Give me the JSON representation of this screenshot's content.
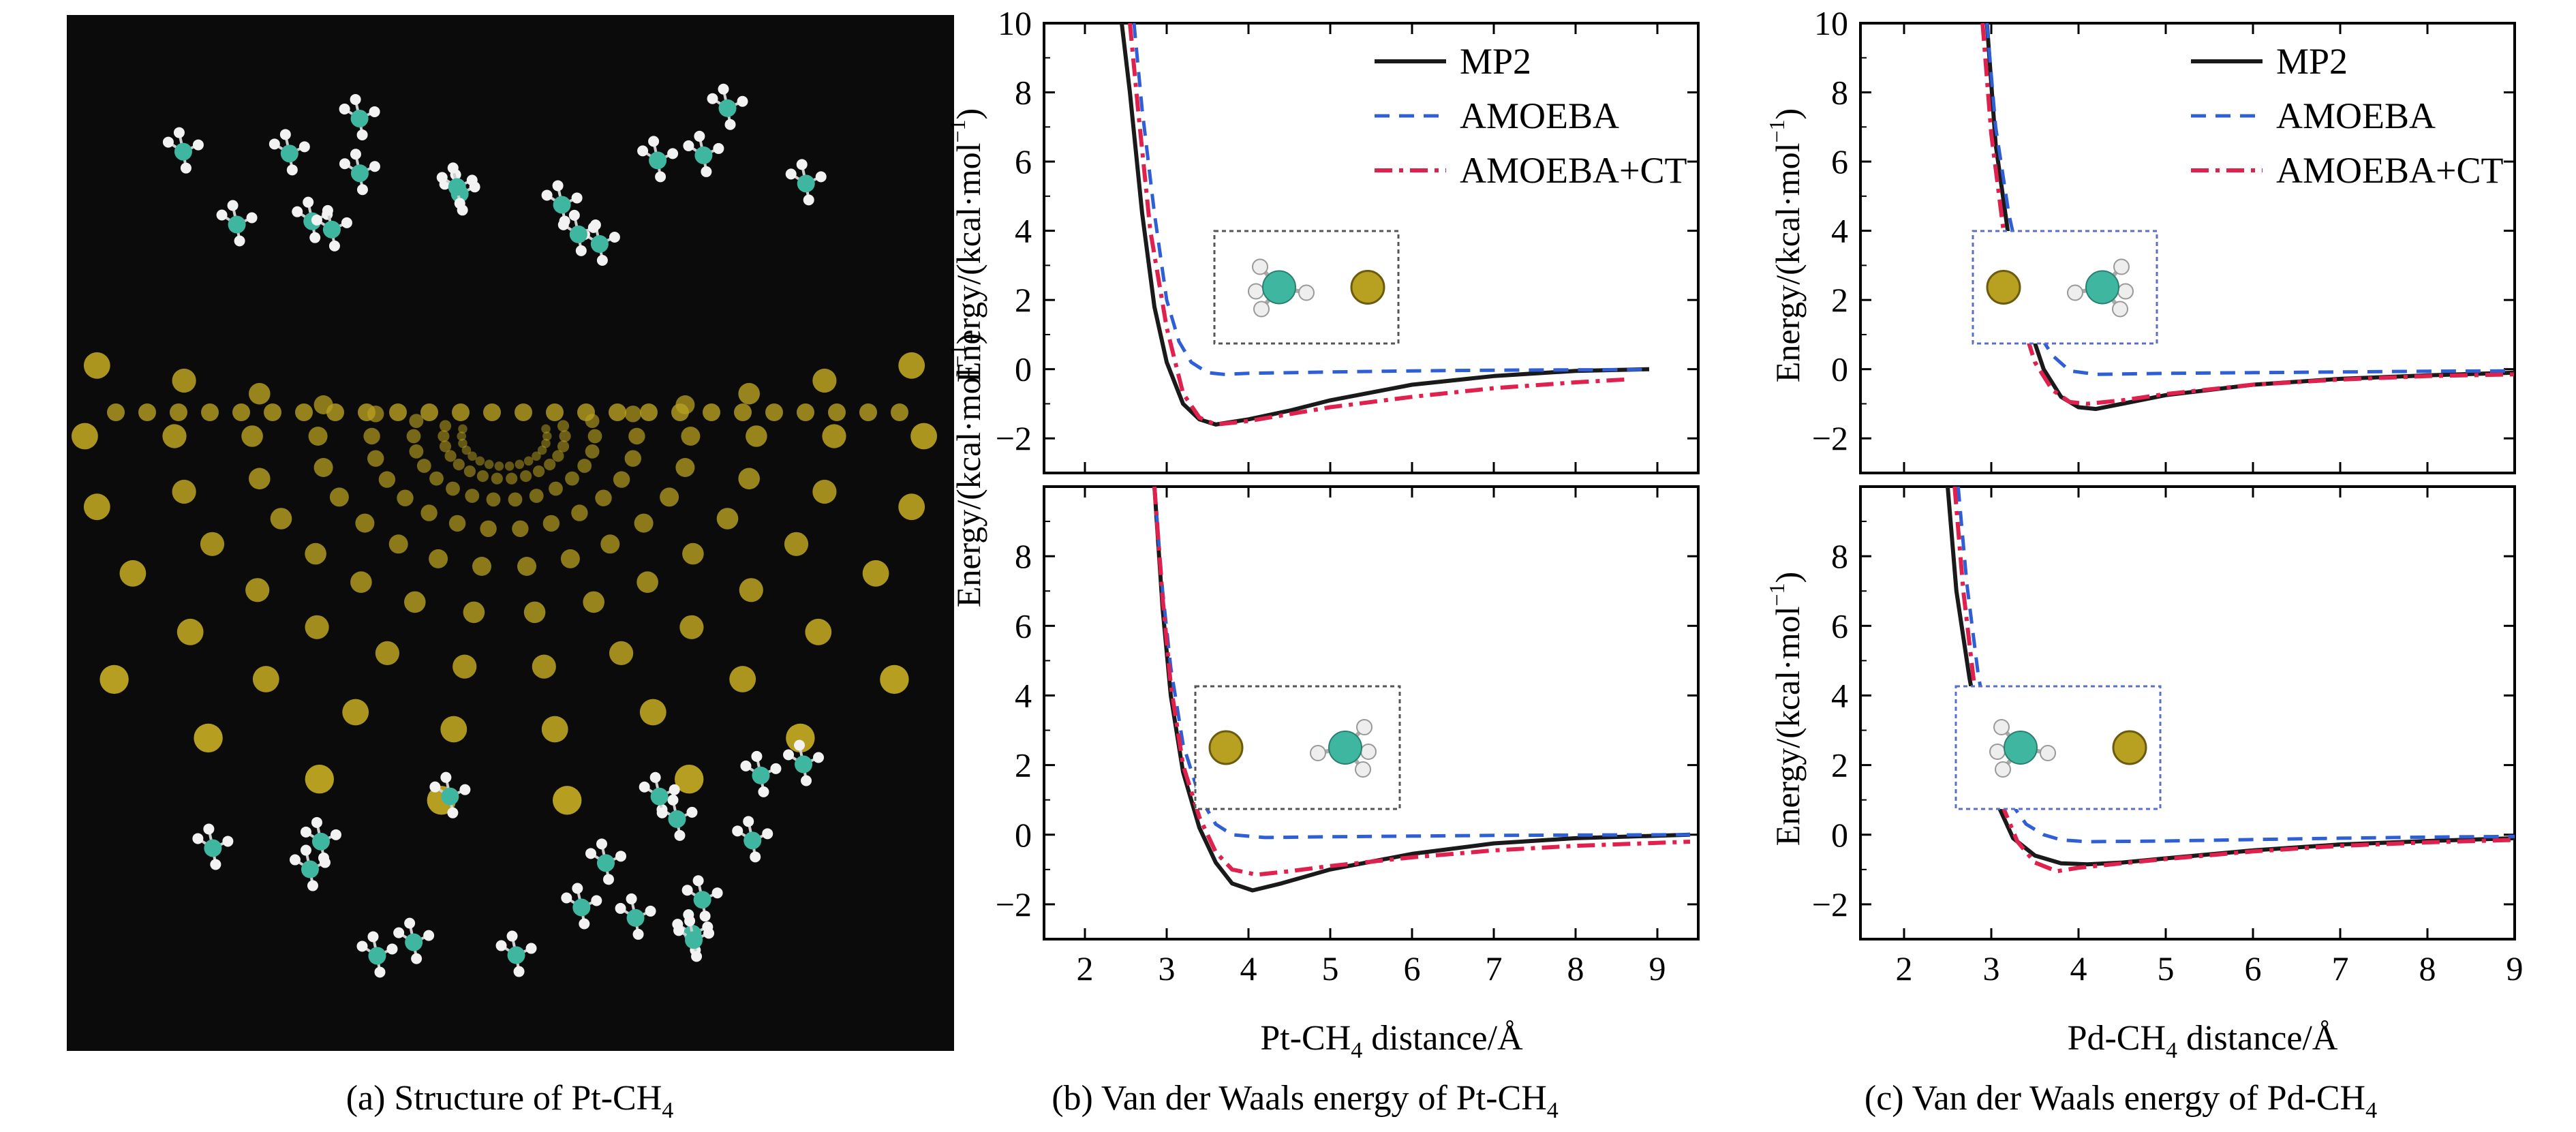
{
  "captions": {
    "a": {
      "text": "(a) Structure of Pt-CH",
      "sub": "4"
    },
    "b": {
      "text": "(b) Van der Waals energy of Pt-CH",
      "sub": "4"
    },
    "c": {
      "text": "(c) Van der Waals energy of Pd-CH",
      "sub": "4"
    }
  },
  "colors": {
    "mp2": "#1a1a1a",
    "amoeba": "#2f5fd6",
    "amoeba_ct": "#e0204d",
    "pt_metal": "#b8a020",
    "carbon": "#3fb7a0",
    "hydrogen": "#f2f2f2",
    "image_bg": "#0b0b0b"
  },
  "legend": {
    "mp2": "MP2",
    "amoeba": "AMOEBA",
    "amoeba_ct": "AMOEBA+CT"
  },
  "axes": {
    "ylabel_main": "Energy/(kcal·mol",
    "ylabel_exp": "−1",
    "ylabel_close": ")",
    "xlabel_pt": {
      "text": "Pt-CH",
      "sub": "4",
      "tail": " distance/Å"
    },
    "xlabel_pd": {
      "text": "Pd-CH",
      "sub": "4",
      "tail": " distance/Å"
    }
  },
  "chart_data": [
    {
      "type": "line",
      "panel": "b-top",
      "xlim": [
        1.5,
        9.5
      ],
      "ylim": [
        -3,
        10
      ],
      "yticks": [
        "10",
        "8",
        "6",
        "4",
        "2",
        "0",
        "−2"
      ],
      "xticks": [],
      "legend_visible": true,
      "legend_position": "top-right",
      "series": [
        {
          "name": "MP2",
          "x": [
            2.45,
            2.55,
            2.7,
            2.85,
            3.0,
            3.2,
            3.4,
            3.6,
            4.0,
            4.5,
            5.0,
            6.0,
            7.0,
            8.0,
            8.9
          ],
          "y": [
            10,
            8,
            4.5,
            1.8,
            0.2,
            -1.0,
            -1.45,
            -1.6,
            -1.45,
            -1.2,
            -0.9,
            -0.45,
            -0.2,
            -0.05,
            0.0
          ]
        },
        {
          "name": "AMOEBA",
          "x": [
            2.6,
            2.7,
            2.85,
            3.0,
            3.15,
            3.3,
            3.5,
            3.7,
            4.0,
            5.0,
            6.0,
            7.0,
            8.0,
            8.9
          ],
          "y": [
            10,
            7.5,
            4.5,
            2.0,
            0.8,
            0.2,
            -0.1,
            -0.15,
            -0.12,
            -0.08,
            -0.05,
            -0.03,
            -0.02,
            -0.01
          ]
        },
        {
          "name": "AMOEBA+CT",
          "x": [
            2.55,
            2.65,
            2.8,
            3.0,
            3.2,
            3.4,
            3.6,
            4.0,
            4.5,
            5.0,
            6.0,
            7.0,
            8.0,
            8.6
          ],
          "y": [
            10,
            7.5,
            4.0,
            1.2,
            -0.7,
            -1.4,
            -1.6,
            -1.5,
            -1.3,
            -1.1,
            -0.8,
            -0.55,
            -0.38,
            -0.3
          ]
        }
      ]
    },
    {
      "type": "line",
      "panel": "b-bottom",
      "xlim": [
        1.5,
        9.5
      ],
      "ylim": [
        -3,
        10
      ],
      "yticks": [
        "8",
        "6",
        "4",
        "2",
        "0",
        "−2"
      ],
      "xticks": [
        "2",
        "3",
        "4",
        "5",
        "6",
        "7",
        "8",
        "9"
      ],
      "legend_visible": false,
      "series": [
        {
          "name": "MP2",
          "x": [
            2.85,
            2.95,
            3.05,
            3.2,
            3.4,
            3.6,
            3.8,
            4.05,
            4.4,
            5.0,
            6.0,
            7.0,
            8.0,
            9.4
          ],
          "y": [
            10,
            6.5,
            4.0,
            1.8,
            0.2,
            -0.8,
            -1.4,
            -1.6,
            -1.4,
            -1.0,
            -0.55,
            -0.25,
            -0.1,
            0.0
          ]
        },
        {
          "name": "AMOEBA",
          "x": [
            2.85,
            2.95,
            3.05,
            3.2,
            3.4,
            3.6,
            3.8,
            4.2,
            5.0,
            6.0,
            7.0,
            8.0,
            9.4
          ],
          "y": [
            10,
            7.0,
            4.8,
            2.6,
            1.1,
            0.3,
            0.0,
            -0.08,
            -0.06,
            -0.04,
            -0.02,
            -0.01,
            0.0
          ]
        },
        {
          "name": "AMOEBA+CT",
          "x": [
            2.85,
            2.95,
            3.05,
            3.2,
            3.4,
            3.6,
            3.8,
            4.1,
            4.5,
            5.0,
            6.0,
            7.0,
            8.0,
            9.4
          ],
          "y": [
            10,
            6.8,
            4.3,
            2.0,
            0.5,
            -0.5,
            -1.0,
            -1.15,
            -1.05,
            -0.9,
            -0.65,
            -0.45,
            -0.32,
            -0.2
          ]
        }
      ]
    },
    {
      "type": "line",
      "panel": "c-top",
      "xlim": [
        1.5,
        9
      ],
      "ylim": [
        -3,
        10
      ],
      "yticks": [
        "10",
        "8",
        "6",
        "4",
        "2",
        "0",
        "−2"
      ],
      "xticks": [],
      "legend_visible": true,
      "legend_position": "top-right",
      "series": [
        {
          "name": "MP2",
          "x": [
            2.95,
            3.05,
            3.2,
            3.4,
            3.6,
            3.8,
            4.0,
            4.2,
            4.5,
            5.0,
            6.0,
            7.0,
            8.0,
            9.0
          ],
          "y": [
            10,
            6.5,
            3.8,
            1.5,
            0.0,
            -0.8,
            -1.1,
            -1.15,
            -1.0,
            -0.75,
            -0.45,
            -0.28,
            -0.18,
            -0.1
          ]
        },
        {
          "name": "AMOEBA",
          "x": [
            2.95,
            3.05,
            3.2,
            3.4,
            3.55,
            3.7,
            3.9,
            4.2,
            5.0,
            6.0,
            7.0,
            8.0,
            9.0
          ],
          "y": [
            10,
            7.0,
            4.5,
            2.2,
            1.0,
            0.4,
            -0.05,
            -0.15,
            -0.12,
            -0.1,
            -0.08,
            -0.06,
            -0.05
          ]
        },
        {
          "name": "AMOEBA+CT",
          "x": [
            2.9,
            3.0,
            3.15,
            3.3,
            3.5,
            3.7,
            3.9,
            4.1,
            4.5,
            5.0,
            6.0,
            7.0,
            8.0,
            9.0
          ],
          "y": [
            10,
            6.8,
            3.8,
            1.8,
            0.2,
            -0.6,
            -0.95,
            -1.0,
            -0.9,
            -0.72,
            -0.45,
            -0.3,
            -0.2,
            -0.15
          ]
        }
      ]
    },
    {
      "type": "line",
      "panel": "c-bottom",
      "xlim": [
        1.5,
        9
      ],
      "ylim": [
        -3,
        10
      ],
      "yticks": [
        "8",
        "6",
        "4",
        "2",
        "0",
        "−2"
      ],
      "xticks": [
        "2",
        "3",
        "4",
        "5",
        "6",
        "7",
        "8",
        "9"
      ],
      "legend_visible": false,
      "series": [
        {
          "name": "MP2",
          "x": [
            2.5,
            2.6,
            2.75,
            2.9,
            3.05,
            3.25,
            3.5,
            3.8,
            4.1,
            4.5,
            5.0,
            6.0,
            7.0,
            8.0,
            9.0
          ],
          "y": [
            10,
            7.0,
            4.5,
            2.5,
            1.0,
            -0.1,
            -0.6,
            -0.82,
            -0.85,
            -0.8,
            -0.68,
            -0.45,
            -0.28,
            -0.18,
            -0.1
          ]
        },
        {
          "name": "AMOEBA",
          "x": [
            2.62,
            2.72,
            2.85,
            3.0,
            3.2,
            3.4,
            3.6,
            3.8,
            4.1,
            5.0,
            6.0,
            7.0,
            8.0,
            9.0
          ],
          "y": [
            10,
            7.2,
            4.6,
            2.5,
            1.0,
            0.3,
            0.0,
            -0.15,
            -0.2,
            -0.18,
            -0.14,
            -0.1,
            -0.07,
            -0.05
          ]
        },
        {
          "name": "AMOEBA+CT",
          "x": [
            2.58,
            2.68,
            2.8,
            2.95,
            3.1,
            3.3,
            3.5,
            3.75,
            4.0,
            4.5,
            5.0,
            6.0,
            7.0,
            8.0,
            9.0
          ],
          "y": [
            10,
            7.0,
            4.4,
            2.4,
            1.0,
            -0.2,
            -0.8,
            -1.05,
            -0.95,
            -0.82,
            -0.7,
            -0.48,
            -0.32,
            -0.22,
            -0.15
          ]
        }
      ]
    }
  ]
}
